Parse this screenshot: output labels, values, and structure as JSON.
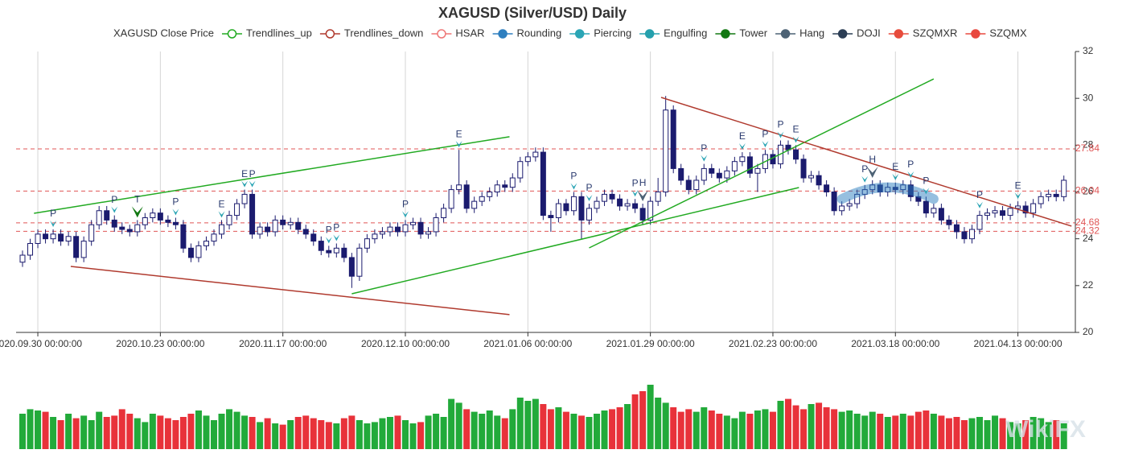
{
  "chart_data": {
    "type": "candlestick",
    "title": "XAGUSD (Silver/USD) Daily",
    "legend": [
      {
        "name": "XAGUSD Close Price"
      },
      {
        "name": "Trendlines_up",
        "color": "#22aa22",
        "hollow": true
      },
      {
        "name": "Trendlines_down",
        "color": "#b03a2e",
        "hollow": true
      },
      {
        "name": "HSAR",
        "color": "#ee7777",
        "hollow": true
      },
      {
        "name": "Rounding",
        "color": "#2e7fbf"
      },
      {
        "name": "Piercing",
        "color": "#2aa5b5"
      },
      {
        "name": "Engulfing",
        "color": "#25a0ad"
      },
      {
        "name": "Tower",
        "color": "#127812"
      },
      {
        "name": "Hang",
        "color": "#4d6275"
      },
      {
        "name": "DOJI",
        "color": "#2c3e55"
      },
      {
        "name": "SZQMXR",
        "color": "#e74c3c"
      },
      {
        "name": "SZQMX",
        "color": "#e8483f"
      }
    ],
    "categories": [
      null,
      null,
      "2020.09.30 00:00:00",
      null,
      null,
      null,
      null,
      null,
      null,
      null,
      null,
      null,
      null,
      null,
      null,
      null,
      null,
      null,
      "2020.10.23 00:00:00",
      null,
      null,
      null,
      null,
      null,
      null,
      null,
      null,
      null,
      null,
      null,
      null,
      null,
      null,
      null,
      "2020.11.17 00:00:00",
      null,
      null,
      null,
      null,
      null,
      null,
      null,
      null,
      null,
      null,
      null,
      null,
      null,
      null,
      null,
      "2020.12.10 00:00:00",
      null,
      null,
      null,
      null,
      null,
      null,
      null,
      null,
      null,
      null,
      null,
      null,
      null,
      null,
      null,
      "2021.01.06 00:00:00",
      null,
      null,
      null,
      null,
      null,
      null,
      null,
      null,
      null,
      null,
      null,
      null,
      null,
      null,
      null,
      "2021.01.29 00:00:00",
      null,
      null,
      null,
      null,
      null,
      null,
      null,
      null,
      null,
      null,
      null,
      null,
      null,
      null,
      null,
      "2021.02.23 00:00:00",
      null,
      null,
      null,
      null,
      null,
      null,
      null,
      null,
      null,
      null,
      null,
      null,
      null,
      null,
      null,
      "2021.03.18 00:00:00",
      null,
      null,
      null,
      null,
      null,
      null,
      null,
      null,
      null,
      null,
      null,
      null,
      null,
      null,
      null,
      "2021.04.13 00:00:00",
      null,
      null,
      null,
      null,
      null,
      null
    ],
    "open": [
      23.0,
      23.3,
      23.8,
      24.2,
      24.0,
      24.2,
      23.9,
      24.1,
      23.2,
      23.9,
      24.6,
      25.2,
      24.8,
      24.5,
      24.4,
      24.3,
      24.6,
      24.9,
      25.1,
      24.8,
      24.7,
      24.6,
      23.6,
      23.2,
      23.7,
      23.9,
      24.2,
      24.6,
      25.0,
      25.5,
      25.9,
      24.2,
      24.5,
      24.3,
      24.8,
      24.6,
      24.7,
      24.4,
      24.2,
      23.9,
      23.5,
      23.4,
      23.6,
      23.2,
      22.4,
      23.6,
      24.0,
      24.2,
      24.3,
      24.5,
      24.3,
      24.6,
      24.7,
      24.2,
      24.3,
      24.9,
      25.3,
      26.1,
      26.3,
      25.3,
      25.6,
      25.8,
      26.0,
      26.3,
      26.2,
      26.6,
      27.3,
      27.5,
      27.7,
      25.0,
      24.9,
      25.5,
      25.2,
      25.8,
      24.8,
      25.3,
      25.6,
      25.9,
      25.7,
      25.4,
      25.5,
      25.3,
      24.8,
      25.6,
      26.0,
      29.5,
      27.0,
      26.5,
      26.1,
      26.5,
      27.0,
      26.8,
      26.6,
      26.9,
      27.3,
      27.5,
      26.8,
      27.0,
      27.6,
      27.2,
      28.0,
      27.8,
      27.4,
      26.6,
      26.7,
      26.3,
      26.0,
      25.2,
      25.4,
      25.5,
      25.9,
      26.1,
      26.3,
      26.0,
      26.2,
      26.1,
      26.3,
      25.8,
      25.6,
      25.1,
      25.3,
      24.8,
      24.6,
      24.3,
      24.0,
      24.4,
      25.0,
      25.1,
      25.2,
      25.0,
      25.3,
      25.4,
      25.1,
      25.5,
      25.8,
      25.9,
      25.8
    ],
    "high": [
      23.5,
      24.0,
      24.4,
      24.4,
      24.4,
      24.4,
      24.3,
      24.3,
      24.1,
      24.8,
      25.4,
      25.4,
      25.0,
      24.7,
      24.6,
      24.8,
      25.1,
      25.3,
      25.3,
      25.0,
      24.9,
      24.8,
      23.8,
      23.9,
      24.1,
      24.4,
      24.8,
      25.2,
      25.7,
      26.1,
      26.1,
      24.7,
      24.7,
      25.0,
      25.0,
      24.9,
      24.9,
      24.6,
      24.4,
      24.1,
      23.7,
      23.8,
      23.8,
      23.4,
      23.8,
      24.2,
      24.4,
      24.5,
      24.7,
      24.7,
      24.8,
      24.9,
      24.9,
      24.5,
      25.1,
      25.5,
      26.3,
      27.8,
      26.5,
      25.8,
      26.0,
      26.2,
      26.5,
      26.5,
      26.8,
      27.5,
      27.7,
      27.9,
      27.9,
      25.2,
      25.7,
      25.7,
      26.0,
      26.0,
      25.5,
      25.8,
      26.1,
      26.1,
      25.9,
      25.7,
      25.7,
      25.5,
      25.8,
      26.6,
      30.1,
      29.7,
      27.2,
      26.7,
      26.7,
      27.2,
      27.2,
      27.0,
      27.1,
      27.5,
      27.7,
      27.7,
      27.2,
      27.8,
      27.8,
      28.2,
      28.2,
      28.0,
      27.6,
      26.9,
      26.9,
      26.5,
      26.2,
      25.6,
      25.7,
      26.1,
      26.3,
      26.5,
      26.5,
      26.4,
      26.4,
      26.5,
      26.5,
      26.0,
      25.8,
      25.5,
      25.5,
      25.0,
      24.8,
      24.5,
      24.6,
      25.2,
      25.3,
      25.4,
      25.4,
      25.5,
      25.6,
      25.6,
      25.7,
      26.0,
      26.1,
      26.1,
      26.7
    ],
    "low": [
      22.8,
      23.1,
      23.6,
      23.8,
      23.8,
      23.7,
      23.7,
      23.0,
      23.0,
      23.7,
      24.4,
      24.6,
      24.3,
      24.2,
      24.1,
      24.1,
      24.4,
      24.7,
      24.6,
      24.5,
      24.4,
      23.4,
      23.0,
      23.0,
      23.5,
      23.7,
      24.0,
      24.4,
      24.8,
      25.3,
      24.0,
      24.0,
      24.1,
      24.1,
      24.4,
      24.4,
      24.2,
      24.0,
      23.7,
      23.3,
      23.2,
      23.2,
      23.0,
      21.9,
      22.2,
      23.4,
      23.8,
      24.0,
      24.1,
      24.1,
      24.1,
      24.4,
      24.0,
      24.0,
      24.1,
      24.7,
      25.1,
      25.9,
      25.1,
      25.1,
      25.4,
      25.6,
      25.8,
      26.0,
      26.0,
      26.4,
      27.1,
      27.3,
      24.8,
      24.3,
      24.7,
      25.0,
      25.0,
      24.0,
      24.6,
      25.1,
      25.4,
      25.5,
      25.2,
      25.2,
      25.1,
      24.6,
      24.6,
      25.4,
      25.8,
      26.8,
      26.3,
      25.9,
      25.9,
      26.3,
      26.6,
      26.4,
      26.4,
      26.7,
      27.1,
      26.6,
      26.0,
      26.8,
      27.0,
      27.0,
      27.6,
      27.2,
      26.4,
      26.4,
      26.1,
      25.8,
      25.0,
      25.0,
      25.2,
      25.3,
      25.7,
      25.9,
      25.8,
      25.8,
      25.9,
      25.9,
      25.6,
      25.4,
      24.9,
      24.9,
      24.6,
      24.4,
      24.0,
      23.8,
      23.8,
      24.2,
      24.8,
      24.9,
      24.8,
      24.8,
      25.1,
      24.9,
      24.9,
      25.3,
      25.6,
      25.6,
      25.6
    ],
    "close": [
      23.3,
      23.8,
      24.2,
      24.0,
      24.2,
      23.9,
      24.1,
      23.2,
      23.9,
      24.6,
      25.2,
      24.8,
      24.5,
      24.4,
      24.3,
      24.6,
      24.9,
      25.1,
      24.8,
      24.7,
      24.6,
      23.6,
      23.2,
      23.7,
      23.9,
      24.2,
      24.6,
      25.0,
      25.5,
      25.9,
      24.2,
      24.5,
      24.3,
      24.8,
      24.6,
      24.7,
      24.4,
      24.2,
      23.9,
      23.5,
      23.4,
      23.6,
      23.2,
      22.4,
      23.6,
      24.0,
      24.2,
      24.3,
      24.5,
      24.3,
      24.6,
      24.7,
      24.2,
      24.3,
      24.9,
      25.3,
      26.1,
      26.3,
      25.3,
      25.6,
      25.8,
      26.0,
      26.3,
      26.2,
      26.6,
      27.3,
      27.5,
      27.7,
      25.0,
      24.9,
      25.5,
      25.2,
      25.8,
      24.8,
      25.3,
      25.6,
      25.9,
      25.7,
      25.4,
      25.5,
      25.3,
      24.8,
      25.6,
      26.0,
      29.5,
      27.0,
      26.5,
      26.1,
      26.5,
      27.0,
      26.8,
      26.6,
      26.9,
      27.3,
      27.5,
      26.8,
      27.0,
      27.6,
      27.2,
      28.0,
      27.8,
      27.4,
      26.6,
      26.7,
      26.3,
      26.0,
      25.2,
      25.4,
      25.5,
      25.9,
      26.1,
      26.3,
      26.0,
      26.2,
      26.1,
      26.3,
      25.8,
      25.6,
      25.1,
      25.3,
      24.8,
      24.6,
      24.3,
      24.0,
      24.4,
      25.0,
      25.1,
      25.2,
      25.0,
      25.3,
      25.4,
      25.1,
      25.5,
      25.8,
      25.9,
      25.8,
      26.5
    ],
    "volume": [
      55,
      62,
      60,
      58,
      50,
      45,
      55,
      48,
      52,
      45,
      58,
      50,
      52,
      62,
      55,
      48,
      42,
      55,
      52,
      48,
      45,
      50,
      55,
      60,
      52,
      45,
      55,
      62,
      58,
      52,
      50,
      42,
      48,
      40,
      38,
      45,
      50,
      52,
      48,
      45,
      42,
      40,
      48,
      52,
      45,
      40,
      42,
      48,
      50,
      52,
      45,
      40,
      42,
      52,
      55,
      50,
      78,
      72,
      62,
      58,
      55,
      60,
      52,
      48,
      62,
      80,
      75,
      78,
      70,
      62,
      65,
      58,
      55,
      52,
      50,
      55,
      60,
      62,
      65,
      70,
      85,
      90,
      100,
      80,
      72,
      65,
      58,
      62,
      58,
      65,
      60,
      55,
      52,
      48,
      58,
      55,
      60,
      62,
      58,
      75,
      78,
      68,
      62,
      70,
      72,
      65,
      62,
      58,
      60,
      55,
      52,
      58,
      55,
      50,
      52,
      55,
      52,
      58,
      60,
      55,
      52,
      48,
      50,
      45,
      48,
      50,
      45,
      52,
      48,
      42,
      40,
      45,
      50,
      48,
      42,
      45,
      40
    ],
    "up_color": "#ffffff",
    "down_color": "#1b1b6e",
    "edge_color": "#1b1b6e",
    "volume_up_color": "#22aa3a",
    "volume_down_color": "#e8323a",
    "ylim": [
      20,
      32
    ],
    "yticks": [
      20,
      22,
      24,
      26,
      28,
      30,
      32
    ],
    "grid": true,
    "hsar": {
      "color": "#e05555",
      "values": [
        27.84,
        26.04,
        24.68,
        24.32
      ]
    },
    "trendlines": [
      {
        "name": "Trendlines_up",
        "points": [
          [
            1.5,
            25.09
          ],
          [
            63.6,
            28.36
          ]
        ]
      },
      {
        "name": "Trendlines_up",
        "points": [
          [
            43,
            21.65
          ],
          [
            101.4,
            26.19
          ]
        ]
      },
      {
        "name": "Trendlines_up",
        "points": [
          [
            74,
            23.61
          ],
          [
            119,
            30.83
          ]
        ]
      },
      {
        "name": "Trendlines_down",
        "points": [
          [
            6.3,
            22.82
          ],
          [
            63.6,
            20.76
          ]
        ]
      },
      {
        "name": "Trendlines_down",
        "points": [
          [
            83.4,
            30.04
          ],
          [
            137,
            24.54
          ]
        ]
      }
    ],
    "rounding": {
      "start": 107,
      "end": 119,
      "peak": 26.2,
      "base": 25.7
    },
    "markers": [
      {
        "index": 4,
        "label": "P",
        "series": "Piercing"
      },
      {
        "index": 12,
        "label": "P",
        "series": "Piercing"
      },
      {
        "index": 15,
        "label": "T",
        "series": "Tower"
      },
      {
        "index": 20,
        "label": "P",
        "series": "Piercing"
      },
      {
        "index": 26,
        "label": "E",
        "series": "Engulfing"
      },
      {
        "index": 29,
        "label": "E",
        "series": "Engulfing"
      },
      {
        "index": 30,
        "label": "P",
        "series": "Piercing"
      },
      {
        "index": 40,
        "label": "P",
        "series": "Piercing"
      },
      {
        "index": 41,
        "label": "P",
        "series": "Piercing"
      },
      {
        "index": 50,
        "label": "P",
        "series": "Piercing"
      },
      {
        "index": 57,
        "label": "E",
        "series": "Engulfing"
      },
      {
        "index": 72,
        "label": "P",
        "series": "Piercing"
      },
      {
        "index": 74,
        "label": "P",
        "series": "Piercing"
      },
      {
        "index": 80,
        "label": "P",
        "series": "Piercing"
      },
      {
        "index": 81,
        "label": "H",
        "series": "Hang"
      },
      {
        "index": 89,
        "label": "P",
        "series": "Piercing"
      },
      {
        "index": 94,
        "label": "E",
        "series": "Engulfing"
      },
      {
        "index": 97,
        "label": "P",
        "series": "Piercing"
      },
      {
        "index": 99,
        "label": "P",
        "series": "Piercing"
      },
      {
        "index": 101,
        "label": "E",
        "series": "Engulfing"
      },
      {
        "index": 110,
        "label": "P",
        "series": "Piercing"
      },
      {
        "index": 111,
        "label": "H",
        "series": "Hang"
      },
      {
        "index": 114,
        "label": "E",
        "series": "Engulfing"
      },
      {
        "index": 116,
        "label": "P",
        "series": "Piercing"
      },
      {
        "index": 118,
        "label": "P",
        "series": "Piercing"
      },
      {
        "index": 125,
        "label": "P",
        "series": "Piercing"
      },
      {
        "index": 130,
        "label": "E",
        "series": "Engulfing"
      }
    ],
    "watermark": "WikiFX"
  }
}
